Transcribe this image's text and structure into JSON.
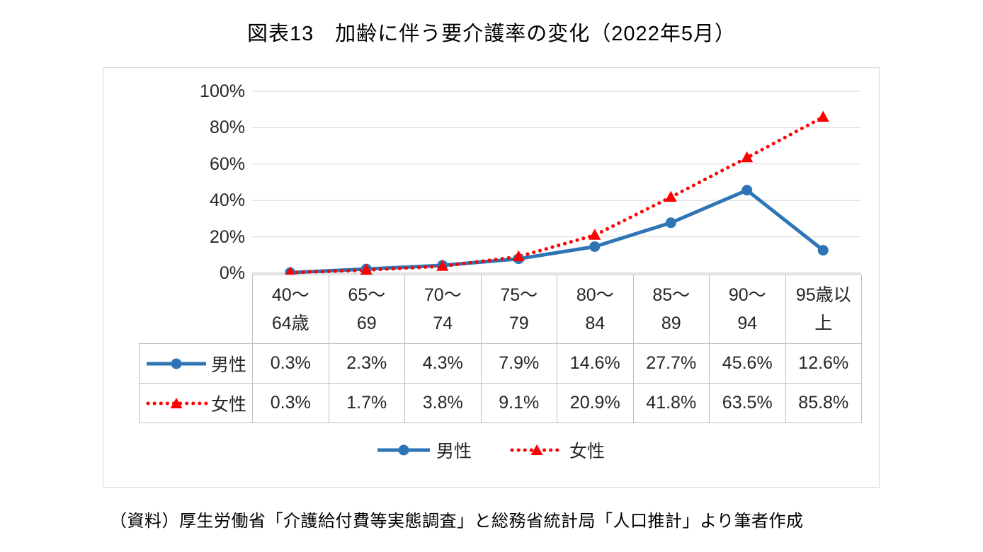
{
  "page": {
    "title": "図表13　加齢に伴う要介護率の変化（2022年5月）",
    "source_note": "（資料）厚生労働省「介護給付費等実態調査」と総務省統計局「人口推計」より筆者作成"
  },
  "chart_data": {
    "type": "line",
    "title": "図表13　加齢に伴う要介護率の変化（2022年5月）",
    "categories": [
      "40～64歳",
      "65～69",
      "70～74",
      "75～79",
      "80～84",
      "85～89",
      "90～94",
      "95歳以上"
    ],
    "series": [
      {
        "name": "男性",
        "values": [
          0.3,
          2.3,
          4.3,
          7.9,
          14.6,
          27.7,
          45.6,
          12.6
        ],
        "color": "#2E75B6",
        "line_style": "solid",
        "marker": "circle"
      },
      {
        "name": "女性",
        "values": [
          0.3,
          1.7,
          3.8,
          9.1,
          20.9,
          41.8,
          63.5,
          85.8
        ],
        "color": "#FF0000",
        "line_style": "dotted",
        "marker": "triangle"
      }
    ],
    "xlabel": "",
    "ylabel": "",
    "ylim": [
      0,
      100
    ],
    "yticks": [
      0,
      20,
      40,
      60,
      80,
      100
    ],
    "ytick_labels": [
      "0%",
      "20%",
      "40%",
      "60%",
      "80%",
      "100%"
    ],
    "grid": "horizontal",
    "legend_position": "bottom",
    "gridline_color": "#D9D9D9",
    "axis_line_color": "#BFBFBF"
  },
  "table": {
    "column_headers": [
      "40～\n64歳",
      "65～\n69",
      "70～\n74",
      "75～\n79",
      "80～\n84",
      "85～\n89",
      "90～\n94",
      "95歳以\n上"
    ],
    "rows": [
      {
        "label": "男性",
        "cells": [
          "0.3%",
          "2.3%",
          "4.3%",
          "7.9%",
          "14.6%",
          "27.7%",
          "45.6%",
          "12.6%"
        ]
      },
      {
        "label": "女性",
        "cells": [
          "0.3%",
          "1.7%",
          "3.8%",
          "9.1%",
          "20.9%",
          "41.8%",
          "63.5%",
          "85.8%"
        ]
      }
    ]
  },
  "legend": {
    "items": [
      {
        "label": "男性"
      },
      {
        "label": "女性"
      }
    ]
  }
}
